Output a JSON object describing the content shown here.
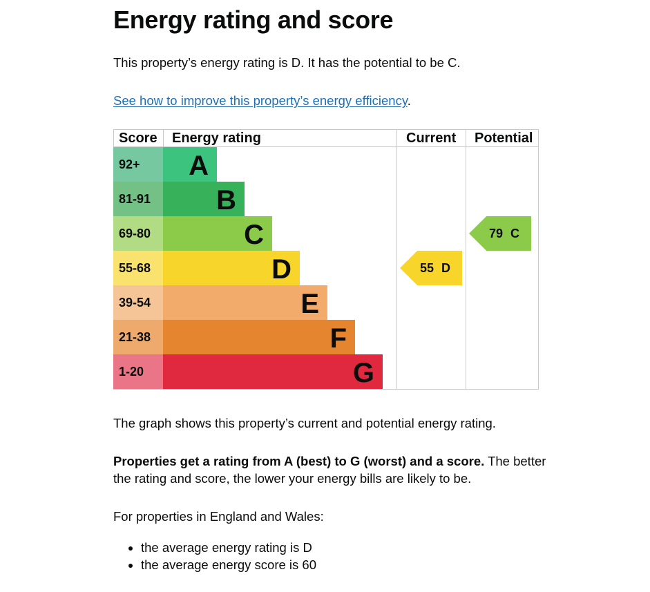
{
  "page": {
    "title": "Energy rating and score",
    "intro": "This property’s energy rating is D. It has the potential to be C.",
    "improve_link": "See how to improve this property’s energy efficiency",
    "improve_suffix": ".",
    "graph_caption": "The graph shows this property’s current and potential energy rating.",
    "rating_bold": "Properties get a rating from A (best) to G (worst) and a score.",
    "rating_rest_1": " The better",
    "rating_rest_2": "the rating and score, the lower your energy bills are likely to be.",
    "average_intro": "For properties in England and Wales:",
    "average_items": [
      "the average energy rating is D",
      "the average energy score is 60"
    ]
  },
  "chart_data": {
    "type": "table",
    "headers": {
      "score": "Score",
      "rating": "Energy rating",
      "current": "Current",
      "potential": "Potential"
    },
    "bands": [
      {
        "score": "92+",
        "letter": "A",
        "bar_color": "#3cc47f",
        "score_bg": "#76c8a0"
      },
      {
        "score": "81-91",
        "letter": "B",
        "bar_color": "#38b25a",
        "score_bg": "#73c184"
      },
      {
        "score": "69-80",
        "letter": "C",
        "bar_color": "#8ccb49",
        "score_bg": "#b2dc83"
      },
      {
        "score": "55-68",
        "letter": "D",
        "bar_color": "#f8d52a",
        "score_bg": "#f9e26e"
      },
      {
        "score": "39-54",
        "letter": "E",
        "bar_color": "#f3ab6b",
        "score_bg": "#f6c597"
      },
      {
        "score": "21-38",
        "letter": "F",
        "bar_color": "#e58530",
        "score_bg": "#eea96c"
      },
      {
        "score": "1-20",
        "letter": "G",
        "bar_color": "#e0283f",
        "score_bg": "#ea7586"
      }
    ],
    "current": {
      "score": 55,
      "letter": "D",
      "label": "55 D",
      "color": "#f8d52a"
    },
    "potential": {
      "score": 79,
      "letter": "C",
      "label": "79 C",
      "color": "#8ccb49"
    }
  }
}
